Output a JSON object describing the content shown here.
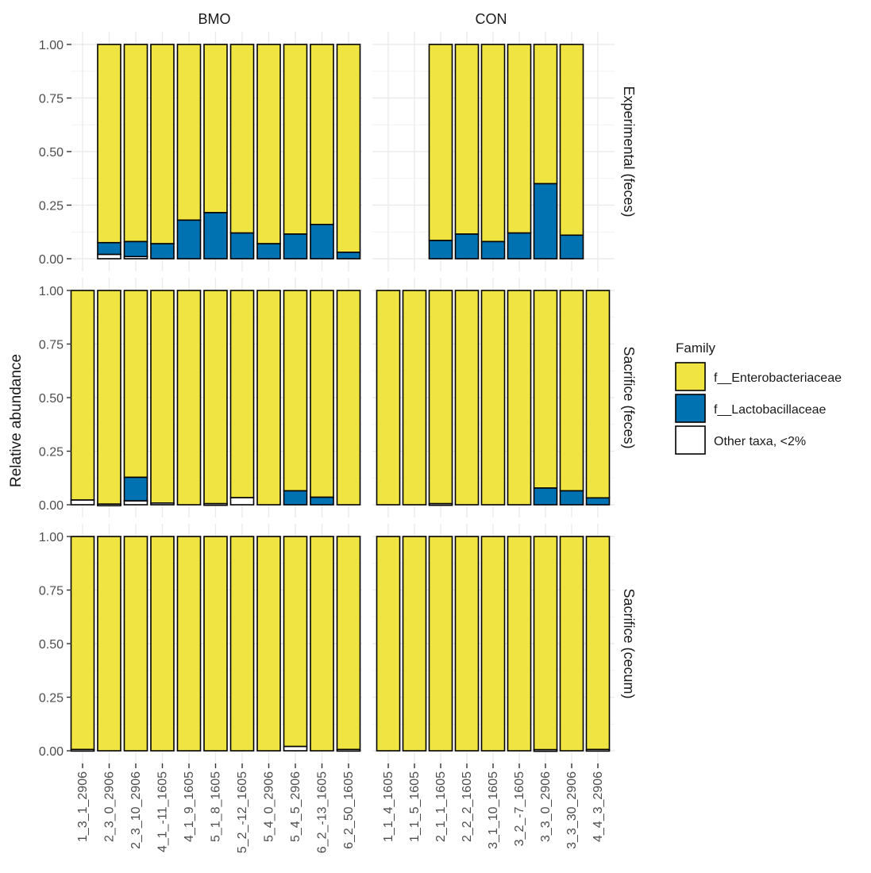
{
  "chart_data": {
    "type": "bar",
    "stacked": true,
    "ylabel": "Relative abundance",
    "xlabel": "",
    "ylim": [
      0,
      1
    ],
    "yticks": [
      "0.00",
      "0.25",
      "0.50",
      "0.75",
      "1.00"
    ],
    "facet_columns": [
      "BMO",
      "CON"
    ],
    "facet_rows": [
      "Experimental (feces)",
      "Sacrifice (feces)",
      "Sacrifice (cecum)"
    ],
    "categories": {
      "BMO": [
        "1_3_1_2906",
        "2_3_0_2906",
        "2_3_10_2906",
        "4_1_-11_1605",
        "4_1_9_1605",
        "5_1_8_1605",
        "5_2_-12_1605",
        "5_4_0_2906",
        "5_4_5_2906",
        "6_2_-13_1605",
        "6_2_50_1605"
      ],
      "CON": [
        "1_1_4_1605",
        "1_1_5_1605",
        "2_1_1_1605",
        "2_2_2_1605",
        "3_1_10_1605",
        "3_2_-7_1605",
        "3_3_0_2906",
        "3_3_30_2906",
        "4_4_3_2906"
      ]
    },
    "legend": {
      "title": "Family",
      "position": "right",
      "entries": [
        {
          "name": "f__Enterobacteriaceae",
          "color": "#F0E442"
        },
        {
          "name": "f__Lactobacillaceae",
          "color": "#0072B2"
        },
        {
          "name": "Other taxa, <2%",
          "color": "#FFFFFF"
        }
      ]
    },
    "stack_order_bottom_to_top": [
      "Other taxa, <2%",
      "f__Lactobacillaceae",
      "f__Enterobacteriaceae"
    ],
    "panels": [
      {
        "row": "Experimental (feces)",
        "column": "BMO",
        "bars": [
          {
            "sample": "2_3_0_2906",
            "other": 0.02,
            "lacto": 0.055
          },
          {
            "sample": "2_3_10_2906",
            "other": 0.01,
            "lacto": 0.07
          },
          {
            "sample": "4_1_-11_1605",
            "other": 0.0,
            "lacto": 0.07
          },
          {
            "sample": "4_1_9_1605",
            "other": 0.0,
            "lacto": 0.18
          },
          {
            "sample": "5_1_8_1605",
            "other": 0.0,
            "lacto": 0.215
          },
          {
            "sample": "5_2_-12_1605",
            "other": 0.0,
            "lacto": 0.12
          },
          {
            "sample": "5_4_0_2906",
            "other": 0.0,
            "lacto": 0.07
          },
          {
            "sample": "5_4_5_2906",
            "other": 0.0,
            "lacto": 0.115
          },
          {
            "sample": "6_2_-13_1605",
            "other": 0.0,
            "lacto": 0.16
          },
          {
            "sample": "6_2_50_1605",
            "other": 0.0,
            "lacto": 0.03
          }
        ]
      },
      {
        "row": "Experimental (feces)",
        "column": "CON",
        "bars": [
          {
            "sample": "2_1_1_1605",
            "other": 0.0,
            "lacto": 0.085
          },
          {
            "sample": "2_2_2_1605",
            "other": 0.0,
            "lacto": 0.115
          },
          {
            "sample": "3_1_10_1605",
            "other": 0.0,
            "lacto": 0.08
          },
          {
            "sample": "3_2_-7_1605",
            "other": 0.0,
            "lacto": 0.12
          },
          {
            "sample": "3_3_0_2906",
            "other": 0.0,
            "lacto": 0.35
          },
          {
            "sample": "3_3_30_2906",
            "other": 0.0,
            "lacto": 0.11
          }
        ]
      },
      {
        "row": "Sacrifice (feces)",
        "column": "BMO",
        "bars": [
          {
            "sample": "1_3_1_2906",
            "other": 0.022,
            "lacto": 0.0
          },
          {
            "sample": "2_3_0_2906",
            "other": 0.003,
            "lacto": 0.0
          },
          {
            "sample": "2_3_10_2906",
            "other": 0.018,
            "lacto": 0.11
          },
          {
            "sample": "4_1_-11_1605",
            "other": 0.008,
            "lacto": 0.0
          },
          {
            "sample": "4_1_9_1605",
            "other": 0.0,
            "lacto": 0.0
          },
          {
            "sample": "5_1_8_1605",
            "other": 0.005,
            "lacto": 0.0
          },
          {
            "sample": "5_2_-12_1605",
            "other": 0.033,
            "lacto": 0.0
          },
          {
            "sample": "5_4_0_2906",
            "other": 0.0,
            "lacto": 0.0
          },
          {
            "sample": "5_4_5_2906",
            "other": 0.0,
            "lacto": 0.065
          },
          {
            "sample": "6_2_-13_1605",
            "other": 0.0,
            "lacto": 0.035
          },
          {
            "sample": "6_2_50_1605",
            "other": 0.0,
            "lacto": 0.0
          }
        ]
      },
      {
        "row": "Sacrifice (feces)",
        "column": "CON",
        "bars": [
          {
            "sample": "1_1_4_1605",
            "other": 0.0,
            "lacto": 0.0
          },
          {
            "sample": "1_1_5_1605",
            "other": 0.0,
            "lacto": 0.0
          },
          {
            "sample": "2_1_1_1605",
            "other": 0.005,
            "lacto": 0.0
          },
          {
            "sample": "2_2_2_1605",
            "other": 0.0,
            "lacto": 0.0
          },
          {
            "sample": "3_1_10_1605",
            "other": 0.0,
            "lacto": 0.0
          },
          {
            "sample": "3_2_-7_1605",
            "other": 0.0,
            "lacto": 0.0
          },
          {
            "sample": "3_3_0_2906",
            "other": 0.0,
            "lacto": 0.078
          },
          {
            "sample": "3_3_30_2906",
            "other": 0.0,
            "lacto": 0.065
          },
          {
            "sample": "4_4_3_2906",
            "other": 0.0,
            "lacto": 0.032
          }
        ]
      },
      {
        "row": "Sacrifice (cecum)",
        "column": "BMO",
        "bars": [
          {
            "sample": "1_3_1_2906",
            "other": 0.006,
            "lacto": 0.0
          },
          {
            "sample": "2_3_0_2906",
            "other": 0.0,
            "lacto": 0.0
          },
          {
            "sample": "2_3_10_2906",
            "other": 0.0,
            "lacto": 0.0
          },
          {
            "sample": "4_1_-11_1605",
            "other": 0.0,
            "lacto": 0.0
          },
          {
            "sample": "4_1_9_1605",
            "other": 0.0,
            "lacto": 0.0
          },
          {
            "sample": "5_1_8_1605",
            "other": 0.0,
            "lacto": 0.0
          },
          {
            "sample": "5_2_-12_1605",
            "other": 0.0,
            "lacto": 0.0
          },
          {
            "sample": "5_4_0_2906",
            "other": 0.0,
            "lacto": 0.0
          },
          {
            "sample": "5_4_5_2906",
            "other": 0.02,
            "lacto": 0.0
          },
          {
            "sample": "6_2_-13_1605",
            "other": 0.0,
            "lacto": 0.0
          },
          {
            "sample": "6_2_50_1605",
            "other": 0.006,
            "lacto": 0.0
          }
        ]
      },
      {
        "row": "Sacrifice (cecum)",
        "column": "CON",
        "bars": [
          {
            "sample": "1_1_4_1605",
            "other": 0.0,
            "lacto": 0.0
          },
          {
            "sample": "1_1_5_1605",
            "other": 0.0,
            "lacto": 0.0
          },
          {
            "sample": "2_1_1_1605",
            "other": 0.0,
            "lacto": 0.0
          },
          {
            "sample": "2_2_2_1605",
            "other": 0.0,
            "lacto": 0.0
          },
          {
            "sample": "3_1_10_1605",
            "other": 0.0,
            "lacto": 0.0
          },
          {
            "sample": "3_2_-7_1605",
            "other": 0.0,
            "lacto": 0.0
          },
          {
            "sample": "3_3_0_2906",
            "other": 0.005,
            "lacto": 0.0
          },
          {
            "sample": "3_3_30_2906",
            "other": 0.0,
            "lacto": 0.0
          },
          {
            "sample": "4_4_3_2906",
            "other": 0.006,
            "lacto": 0.0
          }
        ]
      }
    ]
  }
}
